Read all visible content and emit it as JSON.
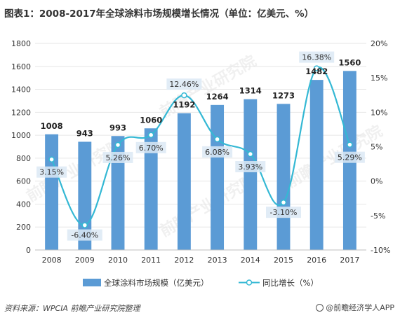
{
  "title": "图表1：2008-2017年全球涂料市场规模增长情况（单位：亿美元、%）",
  "watermark": "前瞻产业研究院",
  "source": "资料来源：WPCIA 前瞻产业研究院整理",
  "logo_text": "@前瞻经济学人APP",
  "colors": {
    "bar": "#5b9bd5",
    "line": "#34b8d4",
    "label_bg": "#dce9f5",
    "grid": "#e6e6e6",
    "axis": "#bfbfbf"
  },
  "chart_data": {
    "type": "bar",
    "categories": [
      "2008",
      "2009",
      "2010",
      "2011",
      "2012",
      "2013",
      "2014",
      "2015",
      "2016",
      "2017"
    ],
    "series": [
      {
        "name": "全球涂料市场规模（亿美元）",
        "type": "bar",
        "axis": "left",
        "values": [
          1008,
          943,
          993,
          1060,
          1192,
          1264,
          1314,
          1273,
          1482,
          1560
        ],
        "labels": [
          "1008",
          "943",
          "993",
          "1060",
          "1192",
          "1264",
          "1314",
          "1273",
          "1482",
          "1560"
        ]
      },
      {
        "name": "同比增长（%）",
        "type": "line",
        "axis": "right",
        "values": [
          3.15,
          -6.4,
          5.26,
          6.7,
          12.46,
          6.08,
          3.93,
          -3.1,
          16.38,
          5.29
        ],
        "labels": [
          "3.15%",
          "-6.40%",
          "5.26%",
          "6.70%",
          "12.46%",
          "6.08%",
          "3.93%",
          "-3.10%",
          "16.38%",
          "5.29%"
        ]
      }
    ],
    "y_left": {
      "ylim": [
        0,
        1800
      ],
      "ticks": [
        "0",
        "200",
        "400",
        "600",
        "800",
        "1000",
        "1200",
        "1400",
        "1600",
        "1800"
      ]
    },
    "y_right": {
      "ylim": [
        -10,
        20
      ],
      "ticks": [
        "-10%",
        "-5%",
        "0%",
        "5%",
        "10%",
        "15%",
        "20%"
      ]
    },
    "grid": true,
    "legend_position": "bottom"
  }
}
